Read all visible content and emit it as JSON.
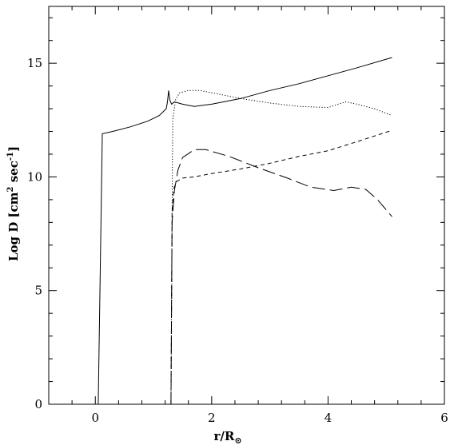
{
  "chart_data": {
    "type": "line",
    "title": "",
    "xlabel": "r/R",
    "xlabel_subscript": "⊙",
    "ylabel": "Log D [cm",
    "ylabel_sup1": "2",
    "ylabel_mid": " sec",
    "ylabel_sup2": "-1",
    "ylabel_end": "]",
    "xlim": [
      -0.8,
      6.0
    ],
    "ylim": [
      0,
      17.5
    ],
    "xticks": [
      0,
      2,
      4,
      6
    ],
    "yticks": [
      0,
      5,
      10,
      15
    ],
    "xtick_labels": [
      "0",
      "2",
      "4",
      "6"
    ],
    "ytick_labels": [
      "0",
      "5",
      "10",
      "15"
    ],
    "grid": false,
    "legend": "none",
    "series": [
      {
        "style": "solid",
        "x": [
          0.05,
          0.12,
          0.3,
          0.6,
          0.9,
          1.1,
          1.22,
          1.24,
          1.26,
          1.28,
          1.31,
          1.36,
          1.5,
          1.7,
          2.0,
          2.5,
          3.0,
          3.5,
          4.0,
          4.5,
          5.1
        ],
        "y": [
          0.0,
          11.9,
          12.0,
          12.2,
          12.45,
          12.7,
          13.0,
          13.3,
          13.8,
          13.4,
          13.2,
          13.3,
          13.2,
          13.1,
          13.2,
          13.45,
          13.8,
          14.1,
          14.45,
          14.8,
          15.25
        ]
      },
      {
        "style": "dotted",
        "x": [
          1.3,
          1.33,
          1.38,
          1.45,
          1.6,
          1.8,
          2.0,
          2.5,
          3.0,
          3.5,
          4.0,
          4.3,
          4.5,
          4.8,
          5.1
        ],
        "y": [
          0.0,
          12.5,
          13.4,
          13.7,
          13.8,
          13.8,
          13.7,
          13.45,
          13.25,
          13.1,
          13.05,
          13.3,
          13.2,
          13.0,
          12.7
        ]
      },
      {
        "style": "short-dashed",
        "x": [
          1.3,
          1.32,
          1.35,
          1.4,
          1.5,
          1.7,
          2.0,
          2.5,
          3.0,
          3.5,
          4.0,
          4.5,
          5.1
        ],
        "y": [
          0.0,
          8.5,
          9.5,
          9.8,
          9.95,
          10.0,
          10.15,
          10.35,
          10.6,
          10.9,
          11.15,
          11.55,
          12.05
        ]
      },
      {
        "style": "long-dashed",
        "x": [
          1.3,
          1.32,
          1.36,
          1.42,
          1.5,
          1.7,
          1.9,
          2.3,
          2.8,
          3.3,
          3.7,
          4.1,
          4.4,
          4.65,
          4.85,
          5.1
        ],
        "y": [
          0.0,
          8.0,
          9.4,
          10.3,
          10.85,
          11.2,
          11.2,
          10.9,
          10.4,
          9.95,
          9.55,
          9.4,
          9.55,
          9.45,
          9.0,
          8.25
        ]
      }
    ]
  }
}
